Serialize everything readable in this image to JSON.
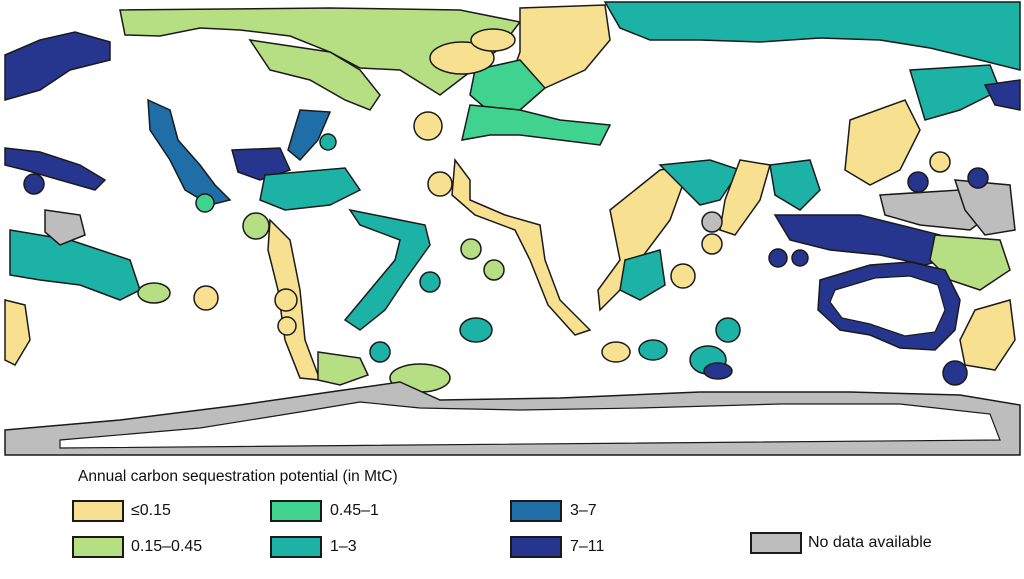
{
  "legend": {
    "title": "Annual carbon sequestration potential (in MtC)",
    "classes": [
      {
        "label": "≤0.15",
        "color": "#f7e08f"
      },
      {
        "label": "0.15–0.45",
        "color": "#b6de83"
      },
      {
        "label": "0.45–1",
        "color": "#3fd38f"
      },
      {
        "label": "1–3",
        "color": "#1cb3a6"
      },
      {
        "label": "3–7",
        "color": "#1f6ea8"
      },
      {
        "label": "7–11",
        "color": "#26368f"
      },
      {
        "label": "No data available",
        "color": "#bdbdbd"
      }
    ]
  },
  "map": {
    "land_color": "#ffffff",
    "outline_color": "#1a1a1a"
  }
}
